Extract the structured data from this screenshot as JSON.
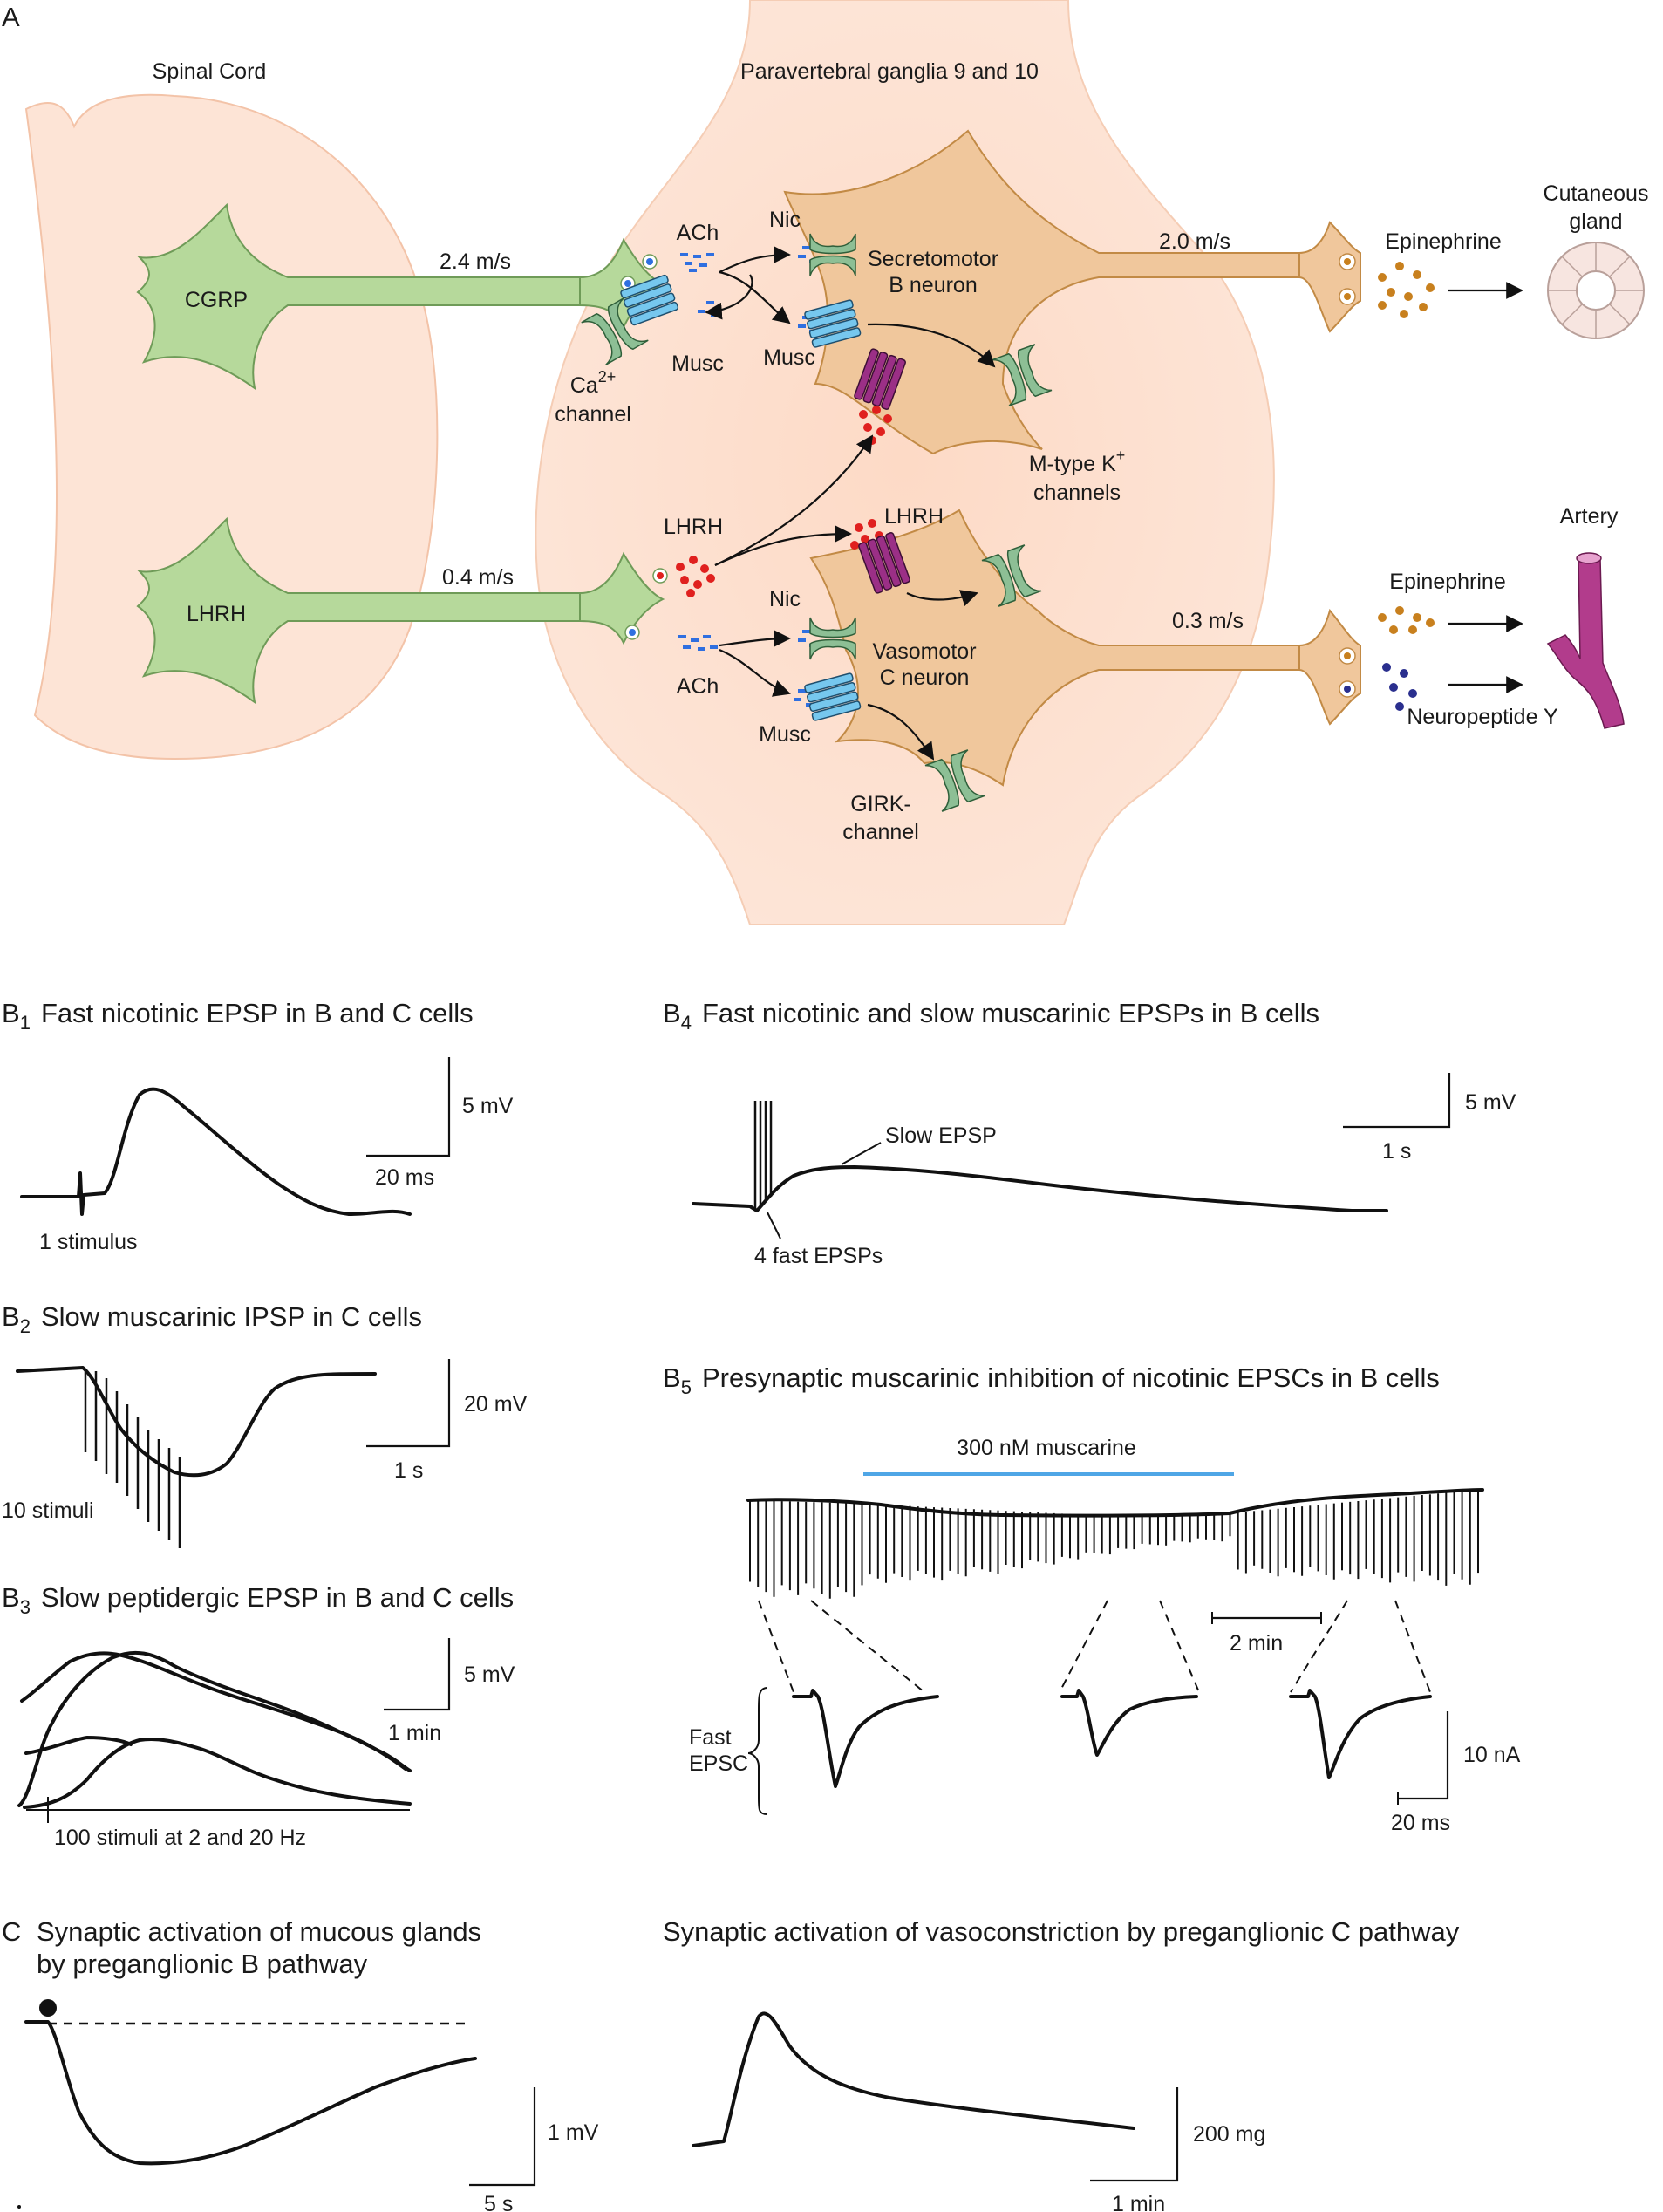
{
  "panel_a": {
    "letter": "A",
    "spinal_cord": "Spinal Cord",
    "ganglia": "Paravertebral ganglia 9 and 10",
    "neuron_cgrp": "CGRP",
    "neuron_lhrh": "LHRH",
    "speed_cgrp": "2.4 m/s",
    "speed_lhrh": "0.4 m/s",
    "speed_b": "2.0 m/s",
    "speed_c": "0.3 m/s",
    "ach_top": "ACh",
    "ach_bottom": "ACh",
    "nic_top": "Nic",
    "nic_bottom": "Nic",
    "musc_pre": "Musc",
    "musc_b": "Musc",
    "musc_c": "Musc",
    "ca_channel_line1": "Ca",
    "ca_channel_sup": "2+",
    "ca_channel_line2": "channel",
    "lhrh_pre": "LHRH",
    "lhrh_post": "LHRH",
    "b_neuron_line1": "Secretomotor",
    "b_neuron_line2": "B neuron",
    "c_neuron_line1": "Vasomotor",
    "c_neuron_line2": "C neuron",
    "mtype_line1": "M-type K",
    "mtype_sup": "+",
    "mtype_line2": "channels",
    "girk_line1": "GIRK-",
    "girk_line2": "channel",
    "epinephrine_top": "Epinephrine",
    "epinephrine_bottom": "Epinephrine",
    "npy": "Neuropeptide Y",
    "gland_line1": "Cutaneous",
    "gland_line2": "gland",
    "artery": "Artery"
  },
  "panel_b1": {
    "letter": "B",
    "sub": "1",
    "title": "Fast nicotinic EPSP in B and C cells",
    "scale_v": "5 mV",
    "scale_t": "20 ms",
    "note": "1 stimulus"
  },
  "panel_b2": {
    "letter": "B",
    "sub": "2",
    "title": "Slow muscarinic IPSP in C cells",
    "scale_v": "20 mV",
    "scale_t": "1 s",
    "note": "10 stimuli"
  },
  "panel_b3": {
    "letter": "B",
    "sub": "3",
    "title": "Slow peptidergic EPSP in B and C cells",
    "scale_v": "5 mV",
    "scale_t": "1 min",
    "note": "100 stimuli at 2 and 20 Hz"
  },
  "panel_b4": {
    "letter": "B",
    "sub": "4",
    "title": "Fast nicotinic and slow muscarinic EPSPs in B cells",
    "scale_v": "5 mV",
    "scale_t": "1 s",
    "slow_label": "Slow EPSP",
    "fast_label": "4 fast EPSPs"
  },
  "panel_b5": {
    "letter": "B",
    "sub": "5",
    "title": "Presynaptic muscarinic inhibition of nicotinic EPSCs in B cells",
    "drug": "300 nM muscarine",
    "scale_top": "2 min",
    "epsc_line1": "Fast",
    "epsc_line2": "EPSC",
    "scale_v": "10 nA",
    "scale_t": "20 ms",
    "drug_color": "#4fa6e6"
  },
  "panel_c": {
    "letter": "C",
    "title_left_line1": "Synaptic activation of mucous glands",
    "title_left_line2": "by preganglionic B pathway",
    "scale_left_v": "1 mV",
    "scale_left_t": "5 s",
    "title_right": "Synaptic activation of vasoconstriction by preganglionic C pathway",
    "scale_right_v": "200 mg",
    "scale_right_t": "1 min"
  },
  "colors": {
    "preganglionic": "#b6d99b",
    "postganglionic": "#f0c79c",
    "background_tissue": "#fde4d6",
    "receptor_blue": "#76c7ee",
    "receptor_purple": "#9b2f86",
    "channel_green": "#8dbf95",
    "ach_dots": "#2f6fe0",
    "lhrh_dots": "#e0201e",
    "epinephrine_dots": "#c8801e",
    "npy_dots": "#2a2f8e",
    "artery": "#b23c8c"
  }
}
